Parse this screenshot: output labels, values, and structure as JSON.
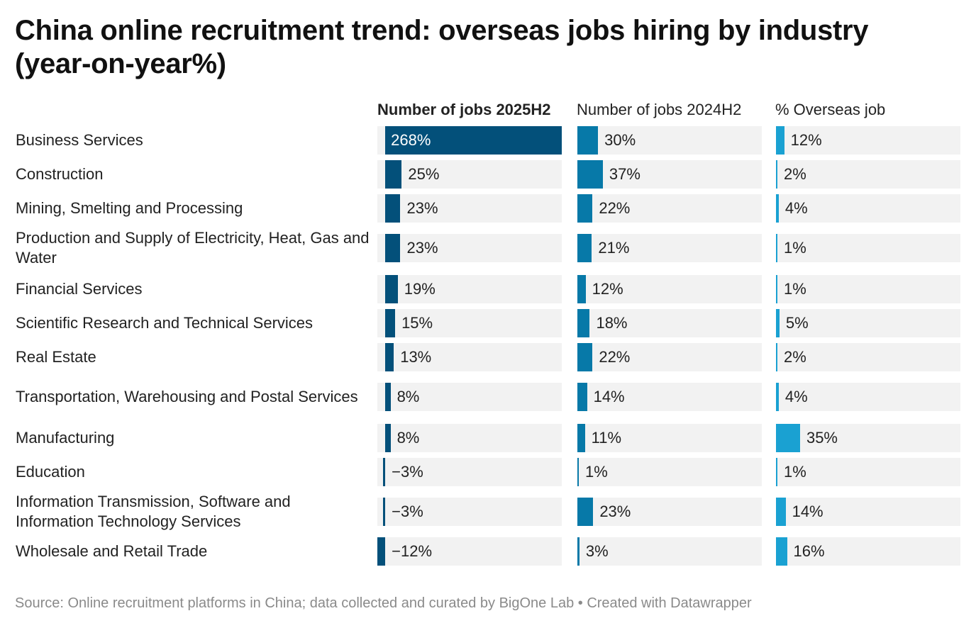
{
  "title": "China online recruitment trend: overseas jobs hiring by industry (year-on-year%)",
  "footer": "Source: Online recruitment platforms in China; data collected and curated by BigOne Lab • Created with Datawrapper",
  "colors": {
    "dark": "#03507a",
    "mid": "#0779a8",
    "light": "#1aa1d2",
    "track": "#f2f2f2"
  },
  "chart_data": {
    "type": "table",
    "columns": [
      {
        "key": "jobs_2025h2",
        "label": "Number of jobs 2025H2",
        "bold": true,
        "color": "#03507a",
        "min": -12,
        "max": 268
      },
      {
        "key": "jobs_2024h2",
        "label": "Number of jobs 2024H2",
        "bold": false,
        "color": "#0779a8",
        "min": 0,
        "max": 268
      },
      {
        "key": "overseas_pct",
        "label": "% Overseas job",
        "bold": false,
        "color": "#1aa1d2",
        "min": 0,
        "max": 268
      }
    ],
    "rows": [
      {
        "industry": "Business Services",
        "values": [
          268,
          30,
          12
        ],
        "labels": [
          "268%",
          "30%",
          "12%"
        ]
      },
      {
        "industry": "Construction",
        "values": [
          25,
          37,
          2
        ],
        "labels": [
          "25%",
          "37%",
          "2%"
        ]
      },
      {
        "industry": "Mining, Smelting and Processing",
        "values": [
          23,
          22,
          4
        ],
        "labels": [
          "23%",
          "22%",
          "4%"
        ]
      },
      {
        "industry": "Production and Supply of Electricity, Heat, Gas and Water",
        "values": [
          23,
          21,
          1
        ],
        "labels": [
          "23%",
          "21%",
          "1%"
        ]
      },
      {
        "industry": "Financial Services",
        "values": [
          19,
          12,
          1
        ],
        "labels": [
          "19%",
          "12%",
          "1%"
        ]
      },
      {
        "industry": "Scientific Research and Technical Services",
        "values": [
          15,
          18,
          5
        ],
        "labels": [
          "15%",
          "18%",
          "5%"
        ]
      },
      {
        "industry": "Real Estate",
        "values": [
          13,
          22,
          2
        ],
        "labels": [
          "13%",
          "22%",
          "2%"
        ]
      },
      {
        "industry": "Transportation, Warehousing and Postal Services",
        "values": [
          8,
          14,
          4
        ],
        "labels": [
          "8%",
          "14%",
          "4%"
        ]
      },
      {
        "industry": "Manufacturing",
        "values": [
          8,
          11,
          35
        ],
        "labels": [
          "8%",
          "11%",
          "35%"
        ]
      },
      {
        "industry": "Education",
        "values": [
          -3,
          1,
          1
        ],
        "labels": [
          "−3%",
          "1%",
          "1%"
        ]
      },
      {
        "industry": "Information Transmission, Software and Information Technology Services",
        "values": [
          -3,
          23,
          14
        ],
        "labels": [
          "−3%",
          "23%",
          "14%"
        ]
      },
      {
        "industry": "Wholesale and Retail Trade",
        "values": [
          -12,
          3,
          16
        ],
        "labels": [
          "−12%",
          "3%",
          "16%"
        ]
      }
    ]
  }
}
